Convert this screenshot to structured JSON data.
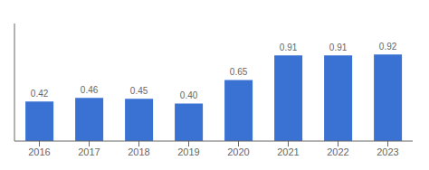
{
  "chart_data": {
    "type": "bar",
    "categories": [
      "2016",
      "2017",
      "2018",
      "2019",
      "2020",
      "2021",
      "2022",
      "2023"
    ],
    "values": [
      0.42,
      0.46,
      0.45,
      0.4,
      0.65,
      0.91,
      0.91,
      0.92
    ],
    "value_labels": [
      "0.42",
      "0.46",
      "0.45",
      "0.40",
      "0.65",
      "0.91",
      "0.91",
      "0.92"
    ],
    "color": "#3a72d4",
    "ylim": [
      0,
      1.25
    ],
    "grid": false,
    "data_labels": true,
    "tick_labels": "x"
  }
}
